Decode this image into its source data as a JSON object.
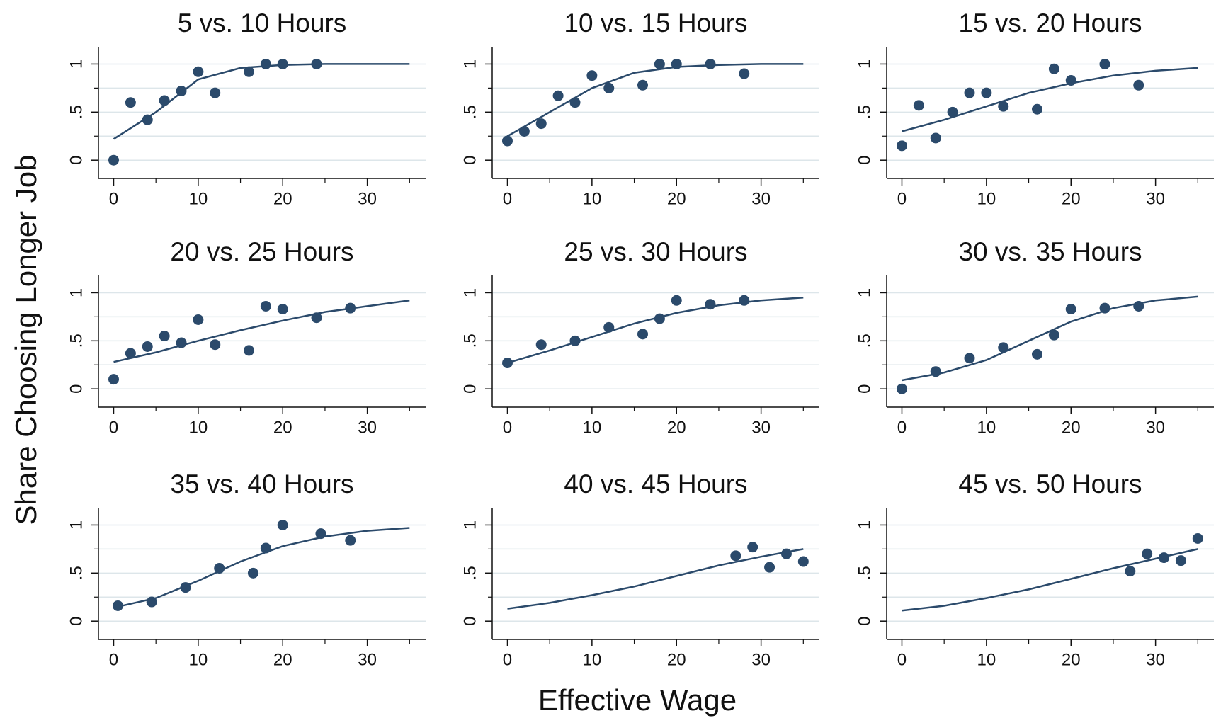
{
  "ylabel": "Share Choosing Longer Job",
  "xlabel": "Effective Wage",
  "chart_data": [
    {
      "type": "scatter",
      "title": "5 vs. 10 Hours",
      "color": "#2b4a6b",
      "xlim": [
        -1.8,
        36.9
      ],
      "ylim": [
        -0.19,
        1.18
      ],
      "xticks": [
        0,
        10,
        20,
        30
      ],
      "xminor": [
        5,
        15,
        25,
        35
      ],
      "yticks": [
        0,
        {
          "value": 0.5,
          "label": ".5"
        },
        1
      ],
      "yminor": [
        0.25,
        0.75
      ],
      "grid": true,
      "x": [
        0,
        2,
        4,
        6,
        8,
        10,
        12,
        16,
        18,
        20,
        24
      ],
      "values": [
        0,
        0.6,
        0.42,
        0.62,
        0.72,
        0.92,
        0.7,
        0.92,
        1,
        1,
        1
      ],
      "fit": {
        "x": [
          0,
          5,
          10,
          15,
          20,
          25,
          30,
          35
        ],
        "values": [
          0.22,
          0.5,
          0.84,
          0.96,
          0.99,
          1,
          1,
          1
        ]
      }
    },
    {
      "type": "scatter",
      "title": "10 vs. 15 Hours",
      "color": "#2b4a6b",
      "xlim": [
        -1.8,
        36.9
      ],
      "ylim": [
        -0.19,
        1.18
      ],
      "xticks": [
        0,
        10,
        20,
        30
      ],
      "xminor": [
        5,
        15,
        25,
        35
      ],
      "yticks": [
        0,
        {
          "value": 0.5,
          "label": ".5"
        },
        1
      ],
      "yminor": [
        0.25,
        0.75
      ],
      "grid": true,
      "x": [
        0,
        2,
        4,
        6,
        8,
        10,
        12,
        16,
        18,
        20,
        24,
        28
      ],
      "values": [
        0.2,
        0.3,
        0.38,
        0.67,
        0.6,
        0.88,
        0.75,
        0.78,
        1,
        1,
        1,
        0.9
      ],
      "fit": {
        "x": [
          0,
          5,
          10,
          15,
          20,
          25,
          30,
          35
        ],
        "values": [
          0.25,
          0.5,
          0.75,
          0.91,
          0.97,
          0.99,
          1,
          1
        ]
      }
    },
    {
      "type": "scatter",
      "title": "15 vs. 20 Hours",
      "color": "#2b4a6b",
      "xlim": [
        -1.8,
        36.9
      ],
      "ylim": [
        -0.19,
        1.18
      ],
      "xticks": [
        0,
        10,
        20,
        30
      ],
      "xminor": [
        5,
        15,
        25,
        35
      ],
      "yticks": [
        0,
        {
          "value": 0.5,
          "label": ".5"
        },
        1
      ],
      "yminor": [
        0.25,
        0.75
      ],
      "grid": true,
      "x": [
        0,
        2,
        4,
        6,
        8,
        10,
        12,
        16,
        18,
        20,
        24,
        28
      ],
      "values": [
        0.15,
        0.57,
        0.23,
        0.5,
        0.7,
        0.7,
        0.56,
        0.53,
        0.95,
        0.83,
        1,
        0.78
      ],
      "fit": {
        "x": [
          0,
          5,
          10,
          15,
          20,
          25,
          30,
          35
        ],
        "values": [
          0.3,
          0.42,
          0.56,
          0.7,
          0.8,
          0.88,
          0.93,
          0.96
        ]
      }
    },
    {
      "type": "scatter",
      "title": "20 vs. 25 Hours",
      "color": "#2b4a6b",
      "xlim": [
        -1.8,
        36.9
      ],
      "ylim": [
        -0.19,
        1.18
      ],
      "xticks": [
        0,
        10,
        20,
        30
      ],
      "xminor": [
        5,
        15,
        25,
        35
      ],
      "yticks": [
        0,
        {
          "value": 0.5,
          "label": ".5"
        },
        1
      ],
      "yminor": [
        0.25,
        0.75
      ],
      "grid": true,
      "x": [
        0,
        2,
        4,
        6,
        8,
        10,
        12,
        16,
        18,
        20,
        24,
        28
      ],
      "values": [
        0.1,
        0.37,
        0.44,
        0.55,
        0.48,
        0.72,
        0.46,
        0.4,
        0.86,
        0.83,
        0.74,
        0.84
      ],
      "fit": {
        "x": [
          0,
          5,
          10,
          15,
          20,
          25,
          30,
          35
        ],
        "values": [
          0.28,
          0.38,
          0.5,
          0.61,
          0.71,
          0.8,
          0.86,
          0.92
        ]
      }
    },
    {
      "type": "scatter",
      "title": "25 vs. 30 Hours",
      "color": "#2b4a6b",
      "xlim": [
        -1.8,
        36.9
      ],
      "ylim": [
        -0.19,
        1.18
      ],
      "xticks": [
        0,
        10,
        20,
        30
      ],
      "xminor": [
        5,
        15,
        25,
        35
      ],
      "yticks": [
        0,
        {
          "value": 0.5,
          "label": ".5"
        },
        1
      ],
      "yminor": [
        0.25,
        0.75
      ],
      "grid": true,
      "x": [
        0,
        4,
        8,
        12,
        16,
        18,
        20,
        24,
        28
      ],
      "values": [
        0.27,
        0.46,
        0.5,
        0.64,
        0.57,
        0.73,
        0.92,
        0.88,
        0.92
      ],
      "fit": {
        "x": [
          0,
          5,
          10,
          15,
          20,
          25,
          30,
          35
        ],
        "values": [
          0.27,
          0.4,
          0.54,
          0.68,
          0.79,
          0.87,
          0.92,
          0.95
        ]
      }
    },
    {
      "type": "scatter",
      "title": "30 vs. 35 Hours",
      "color": "#2b4a6b",
      "xlim": [
        -1.8,
        36.9
      ],
      "ylim": [
        -0.19,
        1.18
      ],
      "xticks": [
        0,
        10,
        20,
        30
      ],
      "xminor": [
        5,
        15,
        25,
        35
      ],
      "yticks": [
        0,
        {
          "value": 0.5,
          "label": ".5"
        },
        1
      ],
      "yminor": [
        0.25,
        0.75
      ],
      "grid": true,
      "x": [
        0,
        4,
        8,
        12,
        16,
        18,
        20,
        24,
        28
      ],
      "values": [
        0,
        0.18,
        0.32,
        0.43,
        0.36,
        0.56,
        0.83,
        0.84,
        0.86
      ],
      "fit": {
        "x": [
          0,
          5,
          10,
          15,
          20,
          25,
          30,
          35
        ],
        "values": [
          0.09,
          0.17,
          0.3,
          0.5,
          0.7,
          0.84,
          0.92,
          0.96
        ]
      }
    },
    {
      "type": "scatter",
      "title": "35 vs. 40 Hours",
      "color": "#2b4a6b",
      "xlim": [
        -1.8,
        36.9
      ],
      "ylim": [
        -0.19,
        1.18
      ],
      "xticks": [
        0,
        10,
        20,
        30
      ],
      "xminor": [
        5,
        15,
        25,
        35
      ],
      "yticks": [
        0,
        {
          "value": 0.5,
          "label": ".5"
        },
        1
      ],
      "yminor": [
        0.25,
        0.75
      ],
      "grid": true,
      "x": [
        0.5,
        4.5,
        8.5,
        12.5,
        16.5,
        18,
        20,
        24.5,
        28
      ],
      "values": [
        0.16,
        0.2,
        0.35,
        0.55,
        0.5,
        0.76,
        1,
        0.91,
        0.84
      ],
      "fit": {
        "x": [
          0,
          5,
          10,
          15,
          20,
          25,
          30,
          35
        ],
        "values": [
          0.14,
          0.24,
          0.42,
          0.62,
          0.78,
          0.88,
          0.94,
          0.97
        ]
      }
    },
    {
      "type": "scatter",
      "title": "40 vs. 45 Hours",
      "color": "#2b4a6b",
      "xlim": [
        -1.8,
        36.9
      ],
      "ylim": [
        -0.19,
        1.18
      ],
      "xticks": [
        0,
        10,
        20,
        30
      ],
      "xminor": [
        5,
        15,
        25,
        35
      ],
      "yticks": [
        0,
        {
          "value": 0.5,
          "label": ".5"
        },
        1
      ],
      "yminor": [
        0.25,
        0.75
      ],
      "grid": true,
      "x": [
        27,
        29,
        31,
        33,
        35
      ],
      "values": [
        0.68,
        0.77,
        0.56,
        0.7,
        0.62
      ],
      "fit": {
        "x": [
          0,
          5,
          10,
          15,
          20,
          25,
          30,
          35
        ],
        "values": [
          0.13,
          0.19,
          0.27,
          0.36,
          0.47,
          0.58,
          0.67,
          0.75
        ]
      }
    },
    {
      "type": "scatter",
      "title": "45 vs. 50 Hours",
      "color": "#2b4a6b",
      "xlim": [
        -1.8,
        36.9
      ],
      "ylim": [
        -0.19,
        1.18
      ],
      "xticks": [
        0,
        10,
        20,
        30
      ],
      "xminor": [
        5,
        15,
        25,
        35
      ],
      "yticks": [
        0,
        {
          "value": 0.5,
          "label": ".5"
        },
        1
      ],
      "yminor": [
        0.25,
        0.75
      ],
      "grid": true,
      "x": [
        27,
        29,
        31,
        33,
        35
      ],
      "values": [
        0.52,
        0.7,
        0.66,
        0.63,
        0.86
      ],
      "fit": {
        "x": [
          0,
          5,
          10,
          15,
          20,
          25,
          30,
          35
        ],
        "values": [
          0.11,
          0.16,
          0.24,
          0.33,
          0.44,
          0.55,
          0.65,
          0.75
        ]
      }
    }
  ]
}
